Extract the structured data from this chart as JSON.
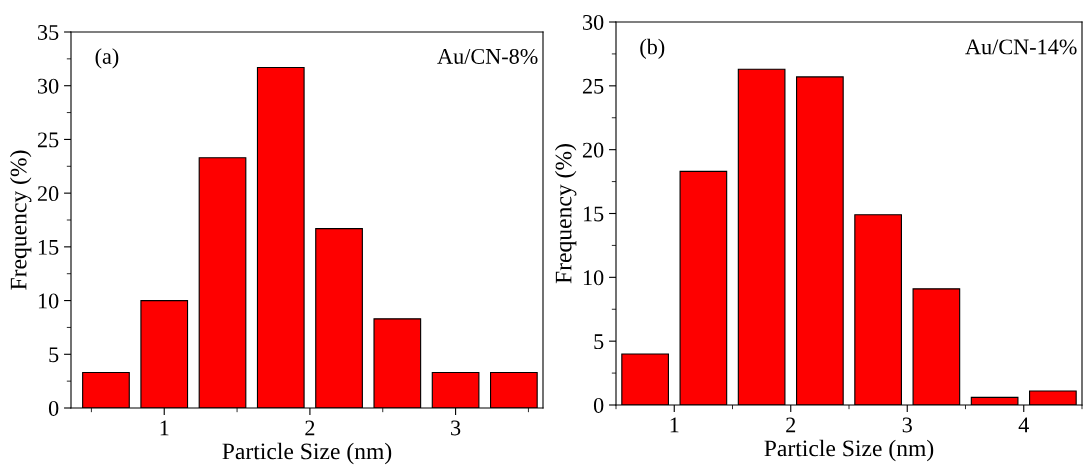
{
  "chart_data": [
    {
      "type": "bar",
      "x": [
        0.6,
        1.0,
        1.4,
        1.8,
        2.2,
        2.6,
        3.0,
        3.4
      ],
      "values": [
        3.3,
        10.0,
        23.3,
        31.7,
        16.7,
        8.3,
        3.3,
        3.3
      ],
      "color": "#fe0000",
      "xlabel": "Particle Size (nm)",
      "ylabel": "Frequency (%)",
      "xlim": [
        0.36,
        3.6
      ],
      "xticks": [
        1,
        2,
        3
      ],
      "ylim": [
        0,
        35
      ],
      "yticks": [
        0,
        5,
        10,
        15,
        20,
        25,
        30,
        35
      ],
      "annotations": [
        "(a)",
        "Au/CN-8%"
      ],
      "grid": false,
      "legend": false
    },
    {
      "type": "bar",
      "x": [
        0.75,
        1.25,
        1.75,
        2.25,
        2.75,
        3.25,
        3.75,
        4.25
      ],
      "values": [
        4.0,
        18.3,
        26.3,
        25.7,
        14.9,
        9.1,
        0.6,
        1.1
      ],
      "color": "#fe0000",
      "xlabel": "Particle Size (nm)",
      "ylabel": "Frequency (%)",
      "xlim": [
        0.5,
        4.5
      ],
      "xticks": [
        1,
        2,
        3,
        4
      ],
      "ylim": [
        0,
        30
      ],
      "yticks": [
        0,
        5,
        10,
        15,
        20,
        25,
        30
      ],
      "annotations": [
        "(b)",
        "Au/CN-14%"
      ],
      "grid": false,
      "legend": false
    }
  ]
}
